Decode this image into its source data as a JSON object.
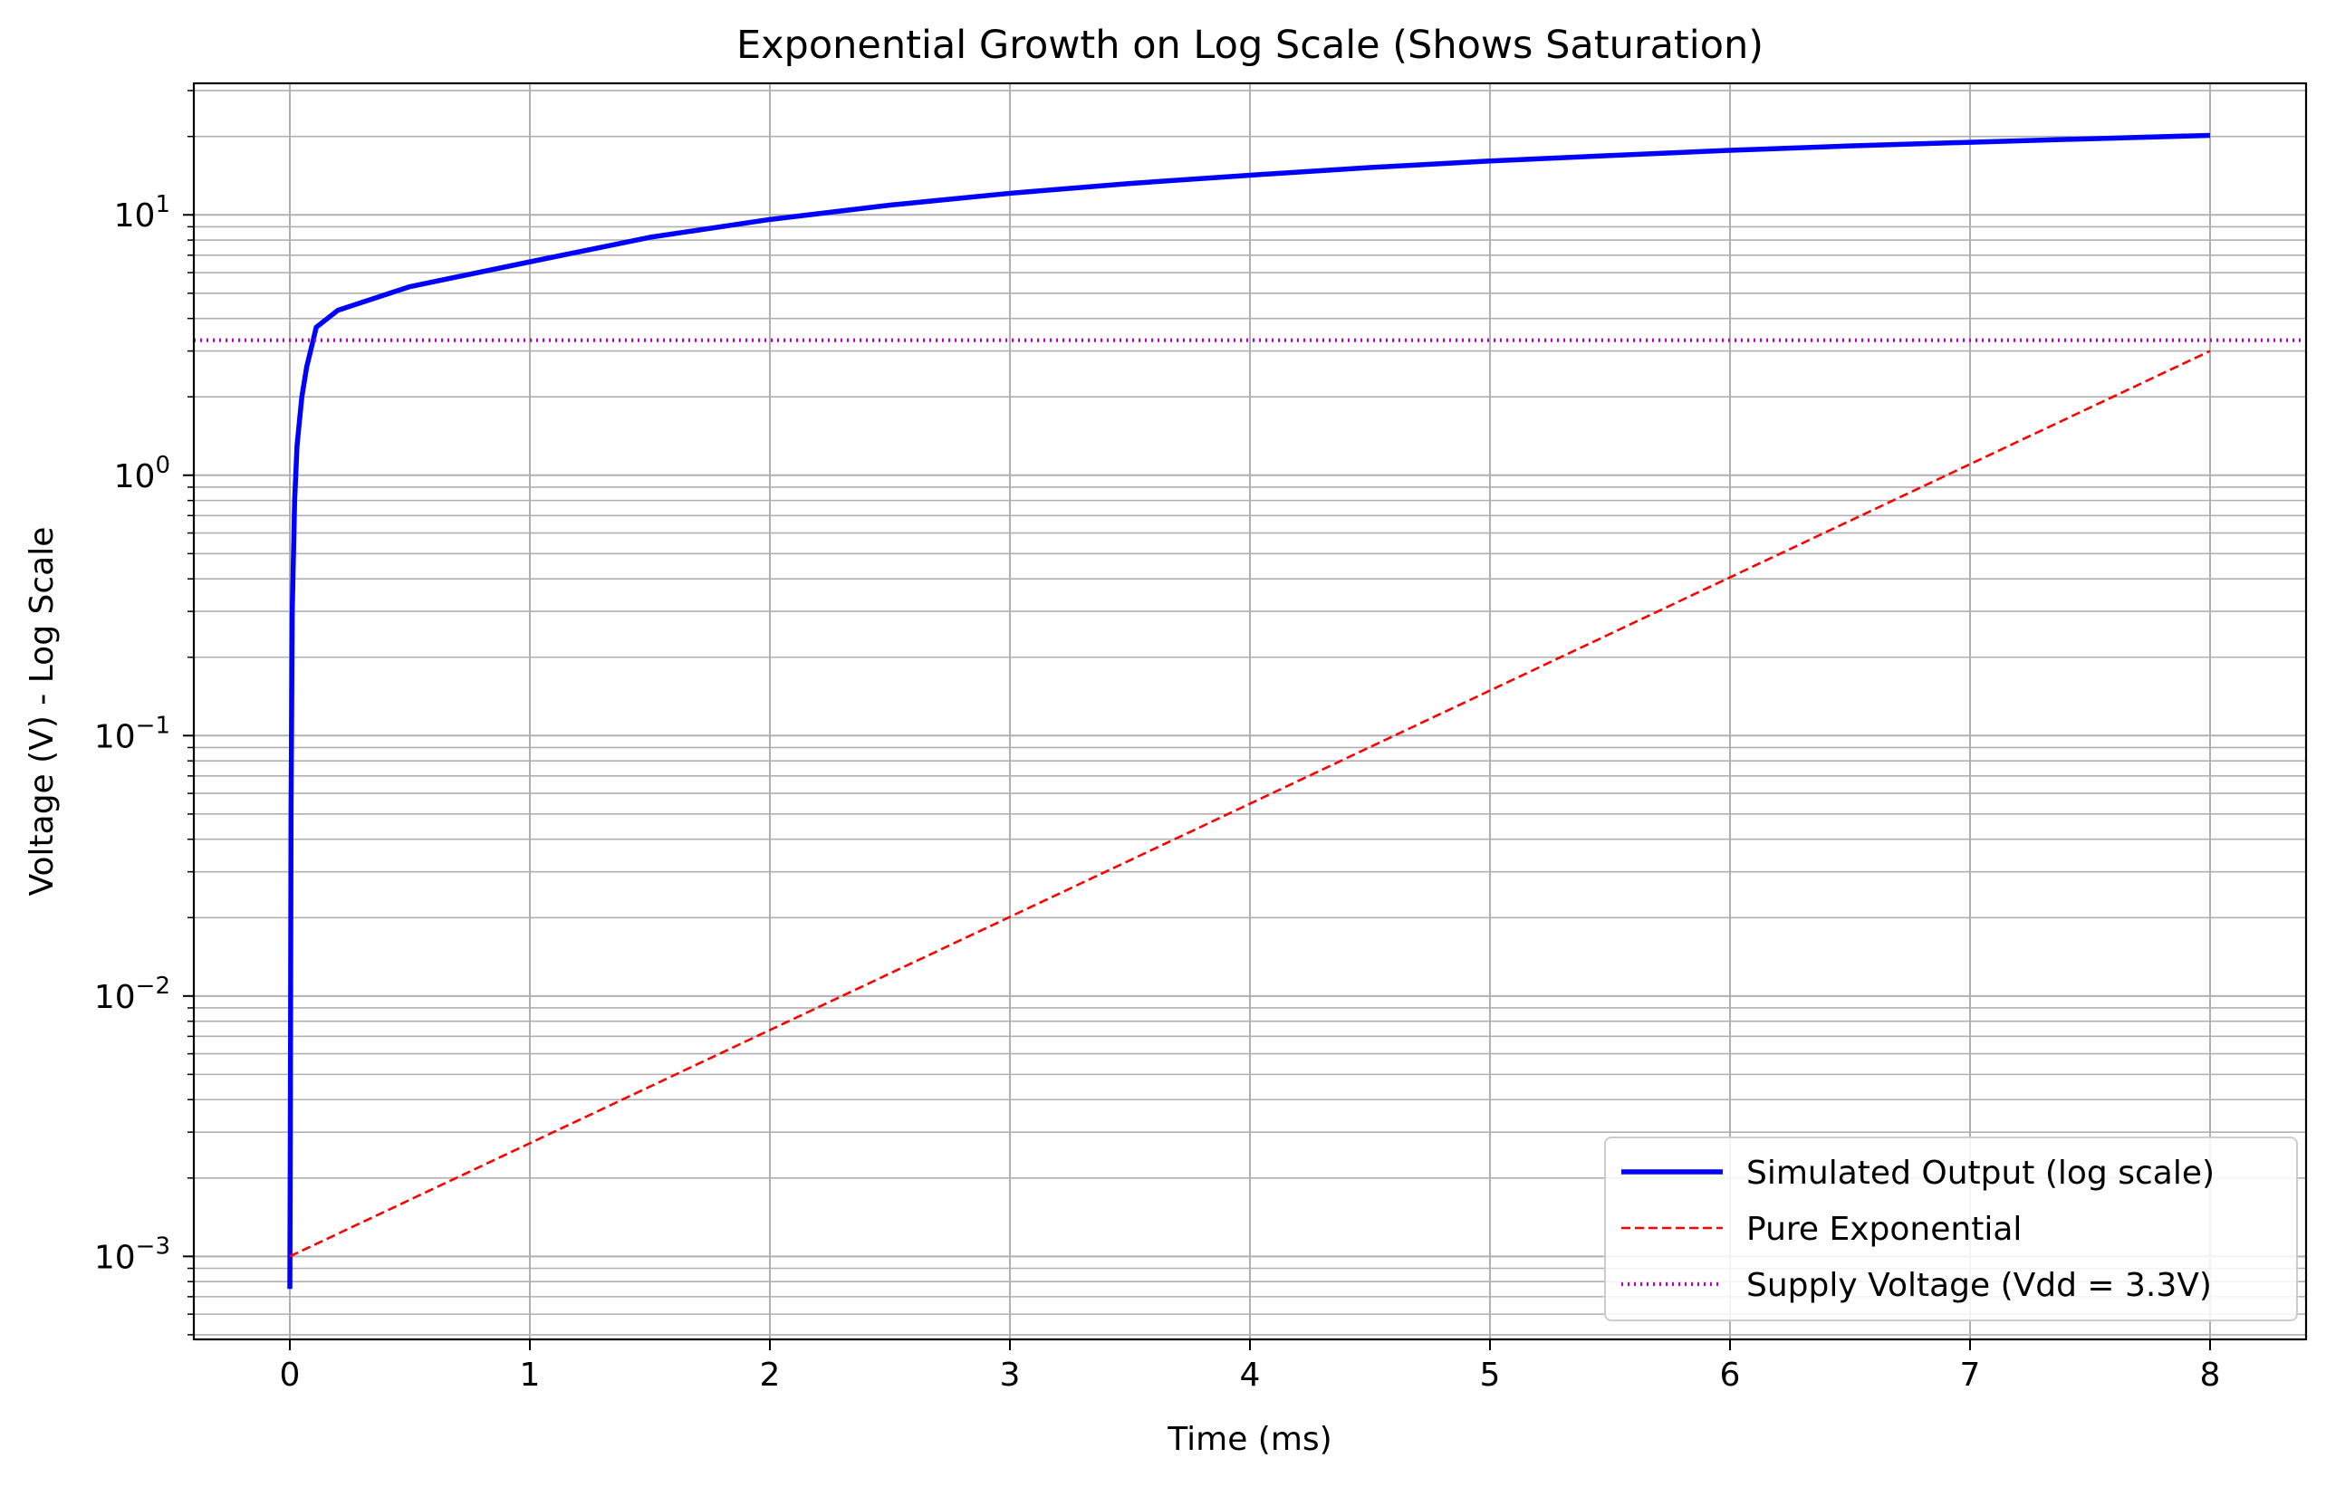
{
  "chart_data": {
    "type": "line",
    "title": "Exponential Growth on Log Scale (Shows Saturation)",
    "xlabel": "Time (ms)",
    "ylabel": "Voltage (V) - Log Scale",
    "xlim": [
      -0.4,
      8.4
    ],
    "ylim": [
      0.00048,
      32
    ],
    "yscale": "log",
    "grid": "both",
    "legend_position": "lower-right",
    "x_ticks": [
      {
        "value": 0,
        "label": "0"
      },
      {
        "value": 1,
        "label": "1"
      },
      {
        "value": 2,
        "label": "2"
      },
      {
        "value": 3,
        "label": "3"
      },
      {
        "value": 4,
        "label": "4"
      },
      {
        "value": 5,
        "label": "5"
      },
      {
        "value": 6,
        "label": "6"
      },
      {
        "value": 7,
        "label": "7"
      },
      {
        "value": 8,
        "label": "8"
      }
    ],
    "y_ticks": [
      {
        "value": 0.001,
        "base": "10",
        "exp": "−3"
      },
      {
        "value": 0.01,
        "base": "10",
        "exp": "−2"
      },
      {
        "value": 0.1,
        "base": "10",
        "exp": "−1"
      },
      {
        "value": 1,
        "base": "10",
        "exp": "0"
      },
      {
        "value": 10,
        "base": "10",
        "exp": "1"
      }
    ],
    "series": [
      {
        "name": "Simulated Output (log scale)",
        "color": "#0000ff",
        "style": "solid",
        "x": [
          0,
          0.002,
          0.005,
          0.01,
          0.02,
          0.03,
          0.05,
          0.07,
          0.09,
          0.11,
          0.2,
          0.5,
          1,
          1.5,
          2,
          2.5,
          3,
          3.5,
          4,
          4.5,
          5,
          5.5,
          6,
          6.5,
          7,
          7.5,
          8
        ],
        "y": [
          0.00075,
          0.003,
          0.05,
          0.3,
          0.8,
          1.3,
          2.0,
          2.6,
          3.1,
          3.7,
          4.3,
          5.3,
          6.6,
          8.2,
          9.6,
          10.9,
          12.1,
          13.2,
          14.2,
          15.2,
          16.1,
          16.9,
          17.7,
          18.4,
          19.0,
          19.6,
          20.2
        ]
      },
      {
        "name": "Pure Exponential",
        "color": "#ff0000",
        "style": "dashed",
        "x": [
          0,
          8
        ],
        "y": [
          0.001,
          3.0
        ]
      },
      {
        "name": "Supply Voltage (Vdd = 3.3V)",
        "color": "#bf00bf",
        "style": "dotted",
        "x": [
          -0.4,
          8.4
        ],
        "y": [
          3.3,
          3.3
        ]
      }
    ]
  }
}
